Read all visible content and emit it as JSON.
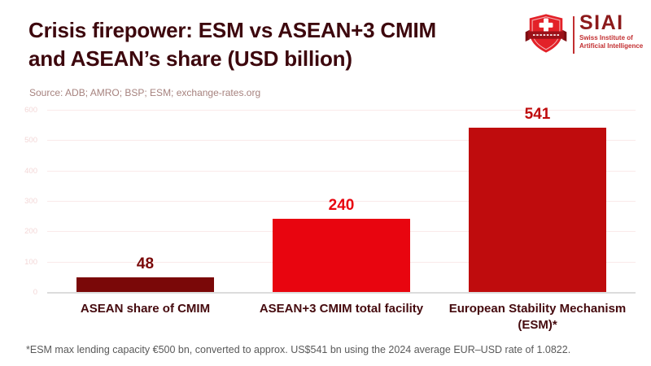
{
  "header": {
    "title_line1": "Crisis firepower: ESM vs ASEAN+3 CMIM",
    "title_line2": "and ASEAN’s share (USD billion)",
    "source": "Source: ADB; AMRO; BSP; ESM; exchange-rates.org"
  },
  "logo": {
    "name": "SIAI",
    "subtitle_line1": "Swiss Institute of",
    "subtitle_line2": "Artificial Intelligence",
    "shield_color": "#e32128",
    "ribbon_color": "#9c1118",
    "name_color": "#8c1a1b",
    "subtitle_color": "#c22f31"
  },
  "chart_data": {
    "type": "bar",
    "title": "Crisis firepower: ESM vs ASEAN+3 CMIM and ASEAN’s share (USD billion)",
    "categories": [
      "ASEAN share of CMIM",
      "ASEAN+3 CMIM total facility",
      "European Stability Mechanism (ESM)*"
    ],
    "category_label_lines": [
      [
        "ASEAN share of CMIM"
      ],
      [
        "ASEAN+3 CMIM total facility"
      ],
      [
        "European Stability Mechanism",
        "(ESM)*"
      ]
    ],
    "values": [
      48,
      240,
      541
    ],
    "bar_colors": [
      "#7a0808",
      "#e8050f",
      "#bf0c0d"
    ],
    "value_label_colors": [
      "#7a0808",
      "#e8050f",
      "#bf0c0d"
    ],
    "ylim": [
      0,
      600
    ],
    "yticks": [
      0,
      100,
      200,
      300,
      400,
      500,
      600
    ],
    "grid": true,
    "legend": false,
    "xlabel": "",
    "ylabel": ""
  },
  "footnote": {
    "text": "*ESM max lending capacity €500 bn, converted to approx. US$541 bn using the 2024 average EUR–USD rate of 1.0822."
  }
}
